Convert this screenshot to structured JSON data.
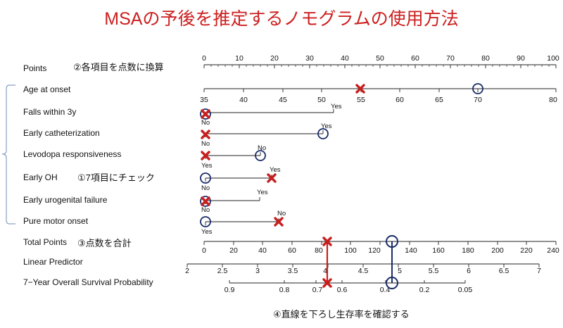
{
  "title": "MSAの予後を推定するノモグラムの使用方法",
  "annotations": {
    "step1": "①7項目にチェック",
    "step2": "②各項目を点数に換算",
    "step3": "③点数を合計",
    "step4": "④直線を下ろし生存率を確認する"
  },
  "points": {
    "label": "Points",
    "ticks": [
      "0",
      "10",
      "20",
      "30",
      "40",
      "50",
      "60",
      "70",
      "80",
      "90",
      "100"
    ]
  },
  "age": {
    "label": "Age at onset",
    "ticks": [
      "35",
      "40",
      "45",
      "50",
      "55",
      "60",
      "65",
      "70",
      "80"
    ]
  },
  "binary_rows": [
    {
      "key": "falls",
      "label": "Falls within 3y",
      "left": "No",
      "right": "Yes"
    },
    {
      "key": "cath",
      "label": "Early catheterization",
      "left": "No",
      "right": "Yes"
    },
    {
      "key": "levo",
      "label": "Levodopa responsiveness",
      "left": "Yes",
      "right": "No"
    },
    {
      "key": "oh",
      "label": "Early OH",
      "left": "No",
      "right": "Yes"
    },
    {
      "key": "uro",
      "label": "Early urogenital failure",
      "left": "No",
      "right": "Yes"
    },
    {
      "key": "pmo",
      "label": "Pure motor onset",
      "left": "Yes",
      "right": "No"
    }
  ],
  "total": {
    "label": "Total Points",
    "ticks": [
      "0",
      "20",
      "40",
      "60",
      "80",
      "100",
      "120",
      "140",
      "160",
      "180",
      "200",
      "220",
      "240"
    ]
  },
  "lp": {
    "label": "Linear Predictor",
    "ticks": [
      "2",
      "2.5",
      "3",
      "3.5",
      "4",
      "4.5",
      "5",
      "5.5",
      "6",
      "6.5",
      "7"
    ]
  },
  "surv": {
    "label": "7−Year Overall Survival Probability",
    "ticks": [
      "0.9",
      "0.8",
      "0.7",
      "0.6",
      "0.4",
      "0.2",
      "0.05"
    ]
  },
  "colors": {
    "title": "#cc1f1f",
    "cross": "#c81e1e",
    "circle": "#1a2c66",
    "axis": "#222222"
  },
  "markers": {
    "cross_icon": "cross-icon",
    "circle_icon": "circle-icon",
    "example_cross": {
      "age": 55,
      "falls": "No",
      "cath": "No",
      "levo": "Yes",
      "oh": "Yes",
      "uro": "No",
      "pmo": "No",
      "total_points": 85
    },
    "example_circle": {
      "age": 70,
      "falls": "No",
      "cath": "Yes",
      "levo": "No",
      "oh": "No",
      "uro": "No",
      "pmo": "Yes",
      "total_points": 131
    }
  }
}
